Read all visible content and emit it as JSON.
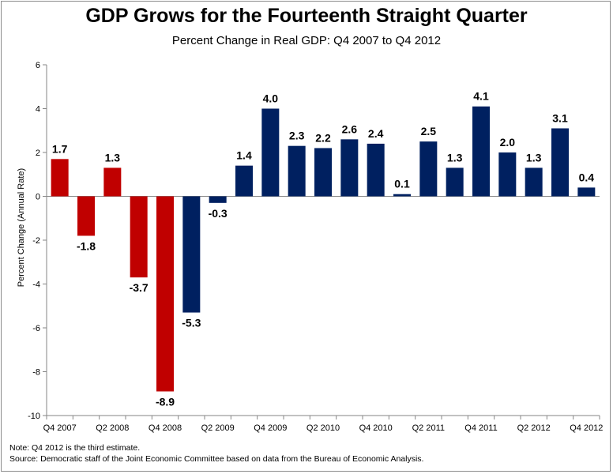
{
  "chart_data": {
    "type": "bar",
    "title": "GDP Grows for the Fourteenth Straight Quarter",
    "subtitle": "Percent Change in Real GDP: Q4 2007 to Q4 2012",
    "ylabel": "Percent Change (Annual Rate)",
    "xlabel": "",
    "ylim": [
      -10,
      6
    ],
    "yticks": [
      -10,
      -8,
      -6,
      -4,
      -2,
      0,
      2,
      4,
      6
    ],
    "xtick_labels": [
      "Q4 2007",
      "Q2 2008",
      "Q4 2008",
      "Q2 2009",
      "Q4 2009",
      "Q2 2010",
      "Q4 2010",
      "Q2 2011",
      "Q4 2011",
      "Q2 2012",
      "Q4 2012"
    ],
    "categories": [
      "Q4 2007",
      "Q1 2008",
      "Q2 2008",
      "Q3 2008",
      "Q4 2008",
      "Q1 2009",
      "Q2 2009",
      "Q3 2009",
      "Q4 2009",
      "Q1 2010",
      "Q2 2010",
      "Q3 2010",
      "Q4 2010",
      "Q1 2011",
      "Q2 2011",
      "Q3 2011",
      "Q4 2011",
      "Q1 2012",
      "Q2 2012",
      "Q3 2012",
      "Q4 2012"
    ],
    "values": [
      1.7,
      -1.8,
      1.3,
      -3.7,
      -8.9,
      -5.3,
      -0.3,
      1.4,
      4.0,
      2.3,
      2.2,
      2.6,
      2.4,
      0.1,
      2.5,
      1.3,
      4.1,
      2.0,
      1.3,
      3.1,
      0.4
    ],
    "value_labels": [
      "1.7",
      "-1.8",
      "1.3",
      "-3.7",
      "-8.9",
      "-5.3",
      "-0.3",
      "1.4",
      "4.0",
      "2.3",
      "2.2",
      "2.6",
      "2.4",
      "0.1",
      "2.5",
      "1.3",
      "4.1",
      "2.0",
      "1.3",
      "3.1",
      "0.4"
    ],
    "bar_colors": [
      "#c00000",
      "#c00000",
      "#c00000",
      "#c00000",
      "#c00000",
      "#002060",
      "#002060",
      "#002060",
      "#002060",
      "#002060",
      "#002060",
      "#002060",
      "#002060",
      "#002060",
      "#002060",
      "#002060",
      "#002060",
      "#002060",
      "#002060",
      "#002060",
      "#002060"
    ],
    "colors": {
      "red": "#c00000",
      "navy": "#002060"
    },
    "grid": false,
    "legend": "none"
  },
  "footer": {
    "note": "Note: Q4 2012 is the third estimate.",
    "source": "Source: Democratic staff of the Joint Economic Committee based on data from the Bureau of Economic Analysis."
  }
}
